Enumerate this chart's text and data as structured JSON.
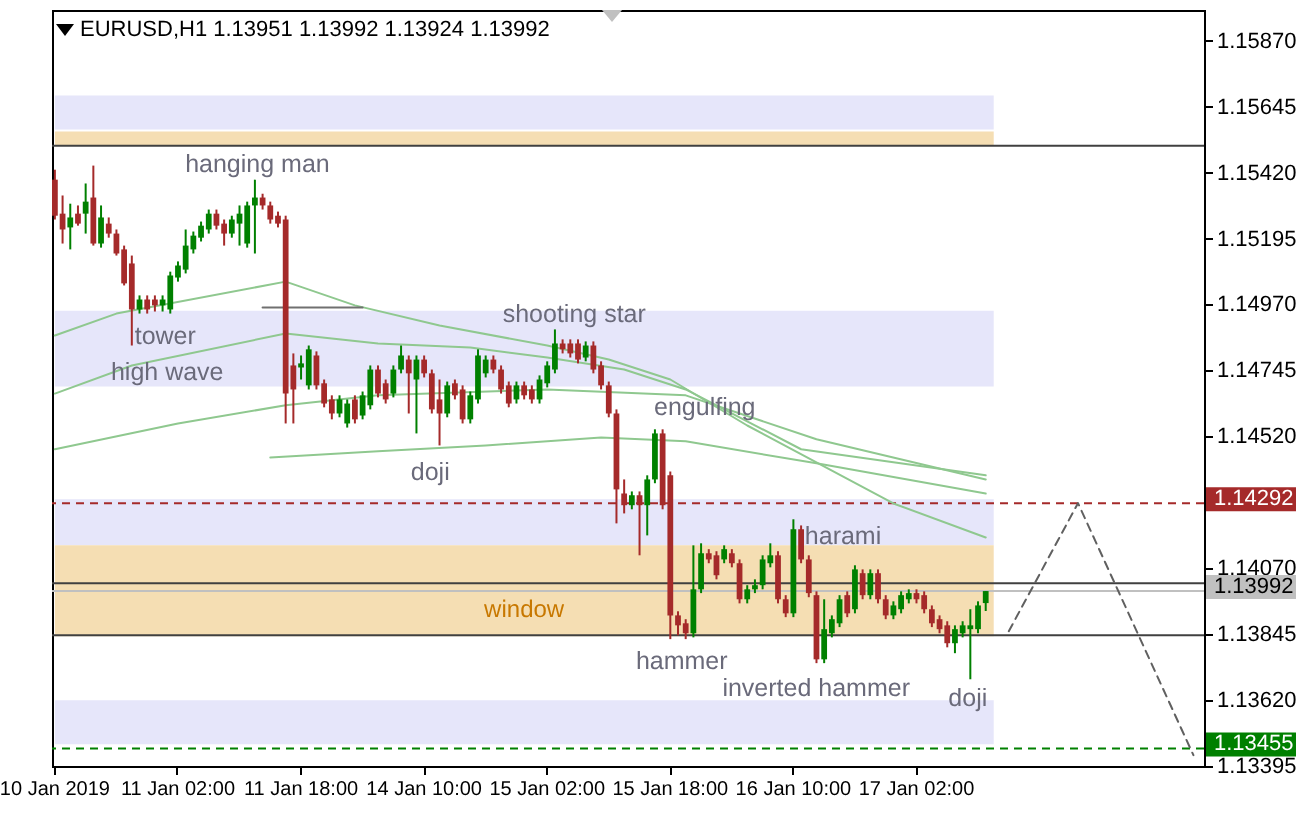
{
  "chart_data": {
    "type": "candlestick",
    "title": "EURUSD,H1 1.13951 1.13992 1.13924 1.13992",
    "categories": [
      "10 Jan 2019",
      null,
      null,
      null,
      null,
      null,
      null,
      null,
      null,
      null,
      null,
      null,
      null,
      null,
      null,
      null,
      "11 Jan 02:00",
      null,
      null,
      null,
      null,
      null,
      null,
      null,
      null,
      null,
      null,
      null,
      null,
      null,
      null,
      null,
      "11 Jan 18:00",
      null,
      null,
      null,
      null,
      null,
      null,
      null,
      null,
      null,
      null,
      null,
      null,
      null,
      null,
      null,
      "14 Jan 10:00",
      null,
      null,
      null,
      null,
      null,
      null,
      null,
      null,
      null,
      null,
      null,
      null,
      null,
      null,
      null,
      "15 Jan 02:00",
      null,
      null,
      null,
      null,
      null,
      null,
      null,
      null,
      null,
      null,
      null,
      null,
      null,
      null,
      null,
      "15 Jan 18:00",
      null,
      null,
      null,
      null,
      null,
      null,
      null,
      null,
      null,
      null,
      null,
      null,
      null,
      null,
      null,
      "16 Jan 10:00",
      null,
      null,
      null,
      null,
      null,
      null,
      null,
      null,
      null,
      null,
      null,
      null,
      null,
      null,
      null,
      "17 Jan 02:00",
      null,
      null,
      null,
      null,
      null,
      null,
      null,
      null,
      null,
      null,
      null,
      null,
      null,
      null,
      null,
      null,
      null,
      null,
      null,
      null,
      null,
      null,
      null,
      null,
      null,
      null,
      null,
      null,
      null,
      null,
      null,
      null,
      null,
      null,
      null,
      null,
      null
    ],
    "ohlc": [
      [
        1.15396,
        1.1543,
        1.1526,
        1.15273
      ],
      [
        1.1528,
        1.15342,
        1.15178,
        1.15226
      ],
      [
        1.15233,
        1.15314,
        1.15158,
        1.15267
      ],
      [
        1.1528,
        1.15308,
        1.15239,
        1.15246
      ],
      [
        1.1528,
        1.15383,
        1.15212,
        1.15321
      ],
      [
        1.15335,
        1.15444,
        1.15171,
        1.15178
      ],
      [
        1.15178,
        1.15308,
        1.15164,
        1.15267
      ],
      [
        1.15246,
        1.15267,
        1.15198,
        1.15212
      ],
      [
        1.15212,
        1.15226,
        1.15137,
        1.15144
      ],
      [
        1.15158,
        1.15171,
        1.15035,
        1.15042
      ],
      [
        1.1511,
        1.15137,
        1.1483,
        1.14953
      ],
      [
        1.14953,
        1.15001,
        1.14939,
        1.14987
      ],
      [
        1.14987,
        1.15001,
        1.14939,
        1.14953
      ],
      [
        1.14987,
        1.15001,
        1.14946,
        1.14967
      ],
      [
        1.14967,
        1.15001,
        1.14946,
        1.14987
      ],
      [
        1.14953,
        1.15082,
        1.14939,
        1.15069
      ],
      [
        1.15062,
        1.15117,
        1.15048,
        1.15103
      ],
      [
        1.15089,
        1.15226,
        1.15076,
        1.15171
      ],
      [
        1.15158,
        1.15219,
        1.15144,
        1.15205
      ],
      [
        1.15198,
        1.15253,
        1.15185,
        1.15239
      ],
      [
        1.15226,
        1.15294,
        1.15212,
        1.1528
      ],
      [
        1.1528,
        1.15294,
        1.15226,
        1.15239
      ],
      [
        1.15246,
        1.1526,
        1.15171,
        1.15212
      ],
      [
        1.15212,
        1.15273,
        1.15198,
        1.1526
      ],
      [
        1.15246,
        1.15308,
        1.15171,
        1.1528
      ],
      [
        1.15178,
        1.15321,
        1.15164,
        1.15308
      ],
      [
        1.15308,
        1.15396,
        1.15144,
        1.15335
      ],
      [
        1.15335,
        1.15348,
        1.15294,
        1.15308
      ],
      [
        1.15308,
        1.15321,
        1.15246,
        1.1526
      ],
      [
        1.15273,
        1.15287,
        1.15233,
        1.15246
      ],
      [
        1.1526,
        1.15273,
        1.14564,
        1.14666
      ],
      [
        1.14762,
        1.14803,
        1.14564,
        1.1468
      ],
      [
        1.14755,
        1.14796,
        1.14714,
        1.14769
      ],
      [
        1.14694,
        1.1483,
        1.1468,
        1.14817
      ],
      [
        1.14796,
        1.1481,
        1.1468,
        1.14694
      ],
      [
        1.14701,
        1.14714,
        1.14619,
        1.14632
      ],
      [
        1.14646,
        1.1466,
        1.14578,
        1.14598
      ],
      [
        1.14598,
        1.1466,
        1.14585,
        1.14646
      ],
      [
        1.14564,
        1.14646,
        1.1455,
        1.14632
      ],
      [
        1.14646,
        1.1466,
        1.14564,
        1.14578
      ],
      [
        1.14591,
        1.14673,
        1.14578,
        1.1466
      ],
      [
        1.14626,
        1.14762,
        1.14612,
        1.14748
      ],
      [
        1.14748,
        1.14762,
        1.14653,
        1.14666
      ],
      [
        1.14701,
        1.14714,
        1.14632,
        1.14646
      ],
      [
        1.14666,
        1.14762,
        1.14653,
        1.14748
      ],
      [
        1.14748,
        1.1483,
        1.14735,
        1.14796
      ],
      [
        1.14782,
        1.14796,
        1.14598,
        1.14735
      ],
      [
        1.14714,
        1.14796,
        1.1453,
        1.14782
      ],
      [
        1.14782,
        1.14796,
        1.14721,
        1.14735
      ],
      [
        1.14735,
        1.14748,
        1.14598,
        1.14612
      ],
      [
        1.14646,
        1.14714,
        1.14489,
        1.14598
      ],
      [
        1.14598,
        1.14707,
        1.14585,
        1.14694
      ],
      [
        1.14701,
        1.14714,
        1.14646,
        1.1466
      ],
      [
        1.1468,
        1.14694,
        1.14564,
        1.14578
      ],
      [
        1.14578,
        1.14673,
        1.14564,
        1.1466
      ],
      [
        1.14646,
        1.14817,
        1.14632,
        1.14796
      ],
      [
        1.14735,
        1.14796,
        1.14721,
        1.14782
      ],
      [
        1.14782,
        1.14796,
        1.14735,
        1.14748
      ],
      [
        1.14748,
        1.14762,
        1.14666,
        1.1468
      ],
      [
        1.14694,
        1.14707,
        1.14619,
        1.14632
      ],
      [
        1.14646,
        1.14707,
        1.14632,
        1.14694
      ],
      [
        1.14694,
        1.14707,
        1.14646,
        1.1466
      ],
      [
        1.1468,
        1.14694,
        1.14632,
        1.14646
      ],
      [
        1.14646,
        1.14728,
        1.14632,
        1.14714
      ],
      [
        1.14701,
        1.14776,
        1.14687,
        1.14762
      ],
      [
        1.14748,
        1.14885,
        1.14735,
        1.14837
      ],
      [
        1.14837,
        1.14851,
        1.14803,
        1.14817
      ],
      [
        1.14837,
        1.14851,
        1.14789,
        1.14803
      ],
      [
        1.14837,
        1.14851,
        1.14769,
        1.14782
      ],
      [
        1.14789,
        1.14844,
        1.14776,
        1.1483
      ],
      [
        1.1483,
        1.14844,
        1.14735,
        1.14748
      ],
      [
        1.14762,
        1.14776,
        1.1468,
        1.14694
      ],
      [
        1.14694,
        1.14707,
        1.14585,
        1.14598
      ],
      [
        1.14598,
        1.14612,
        1.14223,
        1.14339
      ],
      [
        1.14325,
        1.14373,
        1.14257,
        1.14285
      ],
      [
        1.14285,
        1.14332,
        1.14271,
        1.14319
      ],
      [
        1.14319,
        1.14332,
        1.14114,
        1.14285
      ],
      [
        1.14285,
        1.14387,
        1.14182,
        1.14373
      ],
      [
        1.14373,
        1.14544,
        1.1436,
        1.1453
      ],
      [
        1.1453,
        1.14544,
        1.14271,
        1.14285
      ],
      [
        1.14387,
        1.144,
        1.13828,
        1.13909
      ],
      [
        1.13909,
        1.13923,
        1.13841,
        1.13875
      ],
      [
        1.13882,
        1.13896,
        1.13828,
        1.13848
      ],
      [
        1.13848,
        1.14148,
        1.13834,
        1.13998
      ],
      [
        1.13998,
        1.14155,
        1.13985,
        1.14121
      ],
      [
        1.14121,
        1.14135,
        1.14087,
        1.141
      ],
      [
        1.14114,
        1.14128,
        1.14032,
        1.14046
      ],
      [
        1.141,
        1.14148,
        1.14087,
        1.14135
      ],
      [
        1.14121,
        1.14135,
        1.14073,
        1.14087
      ],
      [
        1.14087,
        1.141,
        1.1395,
        1.13964
      ],
      [
        1.13964,
        1.14012,
        1.1395,
        1.13998
      ],
      [
        1.13998,
        1.14032,
        1.13985,
        1.14012
      ],
      [
        1.14012,
        1.14114,
        1.13998,
        1.141
      ],
      [
        1.14087,
        1.14155,
        1.14073,
        1.14114
      ],
      [
        1.14114,
        1.14128,
        1.1395,
        1.13964
      ],
      [
        1.13964,
        1.13978,
        1.13903,
        1.13916
      ],
      [
        1.13916,
        1.14237,
        1.13903,
        1.14203
      ],
      [
        1.14203,
        1.14216,
        1.14087,
        1.141
      ],
      [
        1.141,
        1.14114,
        1.13971,
        1.13985
      ],
      [
        1.13978,
        1.13991,
        1.13746,
        1.13759
      ],
      [
        1.13759,
        1.13964,
        1.13746,
        1.13862
      ],
      [
        1.13848,
        1.13909,
        1.13834,
        1.13896
      ],
      [
        1.13882,
        1.13978,
        1.13869,
        1.13964
      ],
      [
        1.13978,
        1.13991,
        1.13903,
        1.13916
      ],
      [
        1.1393,
        1.1408,
        1.13916,
        1.14066
      ],
      [
        1.14053,
        1.14066,
        1.13964,
        1.13978
      ],
      [
        1.13978,
        1.14066,
        1.13964,
        1.14053
      ],
      [
        1.14053,
        1.14066,
        1.1395,
        1.13964
      ],
      [
        1.13964,
        1.13978,
        1.13896,
        1.13909
      ],
      [
        1.13909,
        1.13957,
        1.13896,
        1.13943
      ],
      [
        1.1393,
        1.13991,
        1.13916,
        1.13978
      ],
      [
        1.13964,
        1.13998,
        1.1395,
        1.13985
      ],
      [
        1.13985,
        1.13998,
        1.1395,
        1.13964
      ],
      [
        1.13978,
        1.13991,
        1.13916,
        1.1393
      ],
      [
        1.1393,
        1.13943,
        1.13869,
        1.13882
      ],
      [
        1.13896,
        1.13909,
        1.13848,
        1.13862
      ],
      [
        1.13875,
        1.13889,
        1.138,
        1.13814
      ],
      [
        1.13814,
        1.13875,
        1.1378,
        1.13862
      ],
      [
        1.13848,
        1.13889,
        1.13834,
        1.13875
      ],
      [
        1.13862,
        1.1393,
        1.13691,
        1.13875
      ],
      [
        1.13862,
        1.13957,
        1.13848,
        1.13943
      ],
      [
        1.13951,
        1.13992,
        1.13924,
        1.13992
      ],
      null,
      null,
      null,
      null,
      null,
      null,
      null,
      null,
      null,
      null,
      null,
      null,
      null,
      null,
      null,
      null,
      null,
      null,
      null,
      null,
      null,
      null,
      null,
      null,
      null,
      null,
      null,
      null
    ],
    "series": [
      {
        "type": "line",
        "color": "#8fc88f",
        "values": [
          1.14864,
          null,
          null,
          null,
          null,
          null,
          null,
          null,
          1.14939,
          null,
          null,
          null,
          null,
          null,
          null,
          null,
          null,
          null,
          null,
          null,
          null,
          null,
          null,
          null,
          null,
          null,
          null,
          null,
          null,
          null,
          1.15048,
          null,
          null,
          null,
          null,
          null,
          null,
          null,
          null,
          1.14967,
          null,
          null,
          null,
          null,
          null,
          null,
          null,
          null,
          null,
          null,
          1.14898,
          null,
          null,
          null,
          null,
          null,
          null,
          null,
          null,
          null,
          null,
          null,
          null,
          null,
          1.1483,
          null,
          null,
          null,
          null,
          null,
          null,
          null,
          1.14782,
          null,
          null,
          null,
          null,
          null,
          null,
          null,
          1.14714,
          null,
          null,
          null,
          null,
          null,
          null,
          null,
          null,
          null,
          1.14557,
          null,
          null,
          null,
          null,
          null,
          null,
          null,
          null,
          null,
          null,
          null,
          null,
          null,
          null,
          null,
          null,
          null,
          null,
          1.14291,
          null,
          null,
          null,
          null,
          null,
          null,
          null,
          null,
          null,
          null,
          null,
          1.14175,
          null,
          null,
          null,
          null,
          null,
          null,
          null,
          null,
          null,
          null,
          null,
          null,
          null,
          null,
          null,
          null,
          null,
          null,
          null,
          null,
          null,
          null,
          null,
          null,
          null,
          null,
          null,
          null
        ]
      },
      {
        "type": "line",
        "color": "#8fc88f",
        "values": [
          1.14666,
          null,
          null,
          null,
          null,
          null,
          null,
          null,
          null,
          null,
          1.14762,
          null,
          null,
          null,
          null,
          null,
          null,
          null,
          null,
          null,
          null,
          null,
          null,
          null,
          null,
          null,
          null,
          null,
          null,
          null,
          1.14871,
          null,
          null,
          null,
          null,
          null,
          null,
          null,
          null,
          null,
          null,
          null,
          1.14837,
          null,
          null,
          null,
          null,
          null,
          null,
          null,
          null,
          null,
          null,
          null,
          1.14823,
          null,
          null,
          null,
          null,
          null,
          null,
          null,
          null,
          null,
          1.14789,
          null,
          null,
          null,
          null,
          null,
          null,
          null,
          null,
          null,
          1.14748,
          null,
          null,
          null,
          null,
          null,
          null,
          null,
          1.1468,
          null,
          null,
          null,
          null,
          null,
          null,
          null,
          null,
          null,
          null,
          null,
          null,
          null,
          null,
          1.14476,
          null,
          null,
          null,
          null,
          null,
          null,
          null,
          null,
          null,
          null,
          null,
          null,
          null,
          null,
          null,
          null,
          null,
          null,
          null,
          null,
          null,
          null,
          null,
          1.14387,
          null,
          null,
          null,
          null,
          null,
          null,
          null,
          null,
          null,
          null,
          null,
          null,
          null,
          null,
          null,
          null,
          null,
          null,
          null,
          null,
          null,
          null,
          null,
          null,
          null,
          null,
          null,
          null
        ]
      },
      {
        "type": "line",
        "color": "#8fc88f",
        "values": [
          1.14476,
          null,
          null,
          null,
          null,
          null,
          null,
          null,
          null,
          null,
          null,
          null,
          null,
          null,
          null,
          null,
          1.14564,
          null,
          null,
          null,
          null,
          null,
          null,
          null,
          null,
          null,
          null,
          null,
          null,
          null,
          1.14626,
          null,
          null,
          null,
          null,
          null,
          null,
          null,
          null,
          null,
          null,
          null,
          1.1466,
          null,
          null,
          null,
          null,
          null,
          null,
          null,
          null,
          null,
          null,
          null,
          null,
          null,
          null,
          null,
          null,
          null,
          null,
          null,
          null,
          null,
          1.1468,
          null,
          null,
          null,
          null,
          null,
          null,
          null,
          null,
          null,
          null,
          null,
          null,
          null,
          null,
          null,
          null,
          null,
          1.1466,
          null,
          null,
          null,
          null,
          null,
          null,
          null,
          null,
          null,
          null,
          null,
          null,
          null,
          null,
          null,
          null,
          1.1451,
          null,
          null,
          null,
          null,
          null,
          null,
          null,
          null,
          null,
          null,
          null,
          null,
          null,
          null,
          null,
          null,
          null,
          null,
          null,
          null,
          null,
          1.14373,
          null,
          null,
          null,
          null,
          null,
          null,
          null,
          null,
          null,
          null,
          null,
          null,
          null,
          null,
          null,
          null,
          null,
          null,
          null,
          null,
          null,
          null,
          null,
          null,
          null,
          null,
          null,
          null
        ]
      },
      {
        "type": "line",
        "color": "#8fc88f",
        "values": [
          null,
          null,
          null,
          null,
          null,
          null,
          null,
          null,
          null,
          null,
          null,
          null,
          null,
          null,
          null,
          null,
          null,
          null,
          null,
          null,
          null,
          null,
          null,
          null,
          null,
          null,
          null,
          null,
          1.14448,
          null,
          null,
          null,
          null,
          null,
          null,
          null,
          null,
          null,
          null,
          null,
          null,
          null,
          1.14469,
          null,
          null,
          null,
          null,
          null,
          null,
          null,
          null,
          null,
          null,
          null,
          null,
          null,
          1.14489,
          null,
          null,
          null,
          null,
          null,
          null,
          null,
          null,
          null,
          null,
          null,
          null,
          null,
          null,
          1.14516,
          null,
          null,
          null,
          null,
          null,
          null,
          null,
          null,
          null,
          null,
          1.14503,
          null,
          null,
          null,
          null,
          null,
          null,
          null,
          null,
          null,
          null,
          null,
          null,
          null,
          null,
          null,
          null,
          1.14428,
          null,
          null,
          null,
          null,
          null,
          null,
          null,
          null,
          null,
          null,
          null,
          null,
          null,
          null,
          null,
          null,
          null,
          null,
          null,
          null,
          null,
          1.14325,
          null,
          null,
          null,
          null,
          null,
          null,
          null,
          null,
          null,
          null,
          null,
          null,
          null,
          null,
          null,
          null,
          null,
          null,
          null,
          null,
          null,
          null,
          null,
          null,
          null,
          null,
          null,
          null
        ]
      },
      {
        "type": "line",
        "color": "#707070",
        "values": [
          null,
          null,
          null,
          null,
          null,
          null,
          null,
          null,
          null,
          null,
          null,
          null,
          null,
          null,
          null,
          null,
          null,
          null,
          null,
          null,
          null,
          null,
          null,
          null,
          null,
          null,
          null,
          1.1496,
          null,
          null,
          null,
          null,
          null,
          null,
          null,
          null,
          null,
          null,
          null,
          null,
          1.1496,
          null,
          null,
          null,
          null,
          null,
          null,
          null,
          null,
          null,
          null,
          null,
          null,
          null,
          null,
          null,
          null,
          null,
          null,
          null,
          null,
          null,
          null,
          null,
          null,
          null,
          null,
          null,
          null,
          null,
          null,
          null,
          null,
          null,
          null,
          null,
          null,
          null,
          null,
          null,
          null,
          null,
          null,
          null,
          null,
          null,
          null,
          null,
          null,
          null,
          null,
          null,
          null,
          null,
          null,
          null,
          null,
          null,
          null,
          null,
          null,
          null,
          null,
          null,
          null,
          null,
          null,
          null,
          null,
          null,
          null,
          null,
          null,
          null,
          null,
          null,
          null,
          null,
          null,
          null,
          null,
          null,
          null,
          null,
          null,
          null,
          null,
          null,
          null,
          null,
          null,
          null,
          null,
          null,
          null,
          null,
          null,
          null,
          null,
          null,
          null,
          null,
          null,
          null,
          null,
          null,
          null,
          null,
          null,
          null
        ]
      },
      {
        "type": "line",
        "color": "#606060",
        "line_style": "dashed",
        "values": [
          null,
          null,
          null,
          null,
          null,
          null,
          null,
          null,
          null,
          null,
          null,
          null,
          null,
          null,
          null,
          null,
          null,
          null,
          null,
          null,
          null,
          null,
          null,
          null,
          null,
          null,
          null,
          null,
          null,
          null,
          null,
          null,
          null,
          null,
          null,
          null,
          null,
          null,
          null,
          null,
          null,
          null,
          null,
          null,
          null,
          null,
          null,
          null,
          null,
          null,
          null,
          null,
          null,
          null,
          null,
          null,
          null,
          null,
          null,
          null,
          null,
          null,
          null,
          null,
          null,
          null,
          null,
          null,
          null,
          null,
          null,
          null,
          null,
          null,
          null,
          null,
          null,
          null,
          null,
          null,
          null,
          null,
          null,
          null,
          null,
          null,
          null,
          null,
          null,
          null,
          null,
          null,
          null,
          null,
          null,
          null,
          null,
          null,
          null,
          null,
          null,
          null,
          null,
          null,
          null,
          null,
          null,
          null,
          null,
          null,
          null,
          null,
          null,
          null,
          null,
          null,
          null,
          null,
          null,
          null,
          null,
          null,
          null,
          null,
          1.13855,
          null,
          null,
          null,
          null,
          null,
          null,
          null,
          null,
          1.14292,
          null,
          null,
          null,
          null,
          null,
          null,
          null,
          null,
          null,
          null,
          null,
          null,
          null,
          null,
          1.13432,
          null
        ]
      }
    ],
    "ylim": [
      1.13395,
      1.15975
    ],
    "yticks": [
      {
        "value": 1.1587,
        "label": "1.15870"
      },
      {
        "value": 1.15645,
        "label": "1.15645"
      },
      {
        "value": 1.1542,
        "label": "1.15420"
      },
      {
        "value": 1.15195,
        "label": "1.15195"
      },
      {
        "value": 1.1497,
        "label": "1.14970"
      },
      {
        "value": 1.14745,
        "label": "1.14745"
      },
      {
        "value": 1.1452,
        "label": "1.14520"
      },
      {
        "value": 1.1407,
        "label": "1.14070"
      },
      {
        "value": 1.13845,
        "label": "1.13845"
      },
      {
        "value": 1.1362,
        "label": "1.13620"
      },
      {
        "value": 1.13395,
        "label": "1.13395"
      }
    ],
    "bands": [
      {
        "axis": "y",
        "from": 1.15567,
        "to": 1.15683,
        "color": "#e6e6fa"
      },
      {
        "axis": "y",
        "from": 1.15512,
        "to": 1.1556,
        "color": "#f5deb3"
      },
      {
        "axis": "y",
        "from": 1.1469,
        "to": 1.14949,
        "color": "#e6e6fa"
      },
      {
        "axis": "y",
        "from": 1.14148,
        "to": 1.14305,
        "color": "#e6e6fa"
      },
      {
        "axis": "y",
        "from": 1.13838,
        "to": 1.14148,
        "color": "#f5deb3",
        "label": "window"
      },
      {
        "axis": "y",
        "from": 1.13469,
        "to": 1.13619,
        "color": "#e6e6fa"
      }
    ],
    "ref_lines": [
      {
        "axis": "y",
        "value": 1.15512,
        "color": "#404040",
        "line_style": "solid"
      },
      {
        "axis": "y",
        "value": 1.14019,
        "color": "#404040",
        "line_style": "solid"
      },
      {
        "axis": "y",
        "value": 1.13841,
        "color": "#404040",
        "line_style": "solid"
      },
      {
        "axis": "y",
        "value": 1.14292,
        "label": "1.14292",
        "color": "#a52a2a",
        "line_style": "dashed"
      },
      {
        "axis": "y",
        "value": 1.13992,
        "label": "1.13992",
        "color": "#c0c0c0",
        "line_style": "solid"
      },
      {
        "axis": "y",
        "value": 1.13455,
        "label": "1.13455",
        "color": "#008000",
        "line_style": "dashed"
      }
    ],
    "annotations": [
      "hanging man",
      "tower",
      "high wave",
      "shooting star",
      "doji",
      {
        "text": "engulfing",
        "y": 1.1453
      },
      "harami",
      {
        "text": "hammer",
        "y": 1.13828
      },
      "inverted hammer",
      "doji"
    ],
    "grid": false
  }
}
